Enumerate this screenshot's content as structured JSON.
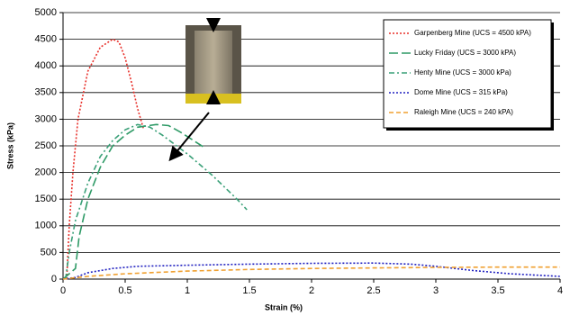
{
  "chart_data": {
    "type": "line",
    "x_label": "Strain (%)",
    "y_label": "Stress (kPa)",
    "xlim": [
      0,
      4
    ],
    "xticks": [
      0,
      0.5,
      1,
      1.5,
      2,
      2.5,
      3,
      3.5,
      4
    ],
    "ylim": [
      0,
      5000
    ],
    "yticks": [
      0,
      500,
      1000,
      1500,
      2000,
      2500,
      3000,
      3500,
      4000,
      4500,
      5000
    ],
    "grid": true,
    "legend": "upper right",
    "series": [
      {
        "name": "Garpenberg Mine (UCS = 4500 kPA)",
        "color": "#e8302a",
        "dash": "dotted",
        "x": [
          0.03,
          0.05,
          0.08,
          0.12,
          0.2,
          0.3,
          0.4,
          0.45,
          0.5,
          0.55,
          0.6,
          0.65
        ],
        "values": [
          0,
          1000,
          2000,
          3000,
          3900,
          4350,
          4500,
          4450,
          4150,
          3700,
          3200,
          2800
        ]
      },
      {
        "name": "Lucky Friday (UCS = 3000 kPA)",
        "color": "#2e9a66",
        "dash": "long-dash",
        "x": [
          0,
          0.1,
          0.13,
          0.2,
          0.3,
          0.4,
          0.5,
          0.6,
          0.75,
          0.85,
          0.95,
          1.05,
          1.15
        ],
        "values": [
          0,
          200,
          800,
          1500,
          2100,
          2500,
          2700,
          2850,
          2900,
          2880,
          2750,
          2600,
          2450
        ]
      },
      {
        "name": "Henty Mine (UCS = 3000 kPa)",
        "color": "#3aa078",
        "dash": "dash-dot",
        "x": [
          0.02,
          0.05,
          0.1,
          0.2,
          0.3,
          0.4,
          0.5,
          0.6,
          0.7,
          0.8,
          1,
          1.2,
          1.4,
          1.48
        ],
        "values": [
          0,
          500,
          1100,
          1800,
          2300,
          2600,
          2800,
          2900,
          2850,
          2700,
          2350,
          1950,
          1500,
          1300
        ]
      },
      {
        "name": "Dome Mine (UCS = 315 kPa)",
        "color": "#2020c0",
        "dash": "dotted",
        "x": [
          0,
          0.1,
          0.2,
          0.4,
          0.6,
          1,
          1.5,
          2,
          2.5,
          2.8,
          3,
          3.3,
          3.6,
          4
        ],
        "values": [
          0,
          30,
          120,
          200,
          240,
          260,
          280,
          295,
          300,
          280,
          240,
          160,
          100,
          50
        ]
      },
      {
        "name": "Raleigh Mine (UCS = 240 kPA)",
        "color": "#f0a030",
        "dash": "dashed",
        "x": [
          0,
          0.2,
          0.5,
          1,
          1.5,
          2,
          2.5,
          3,
          3.5,
          4
        ],
        "values": [
          0,
          50,
          100,
          150,
          180,
          200,
          210,
          220,
          225,
          225
        ]
      }
    ]
  }
}
